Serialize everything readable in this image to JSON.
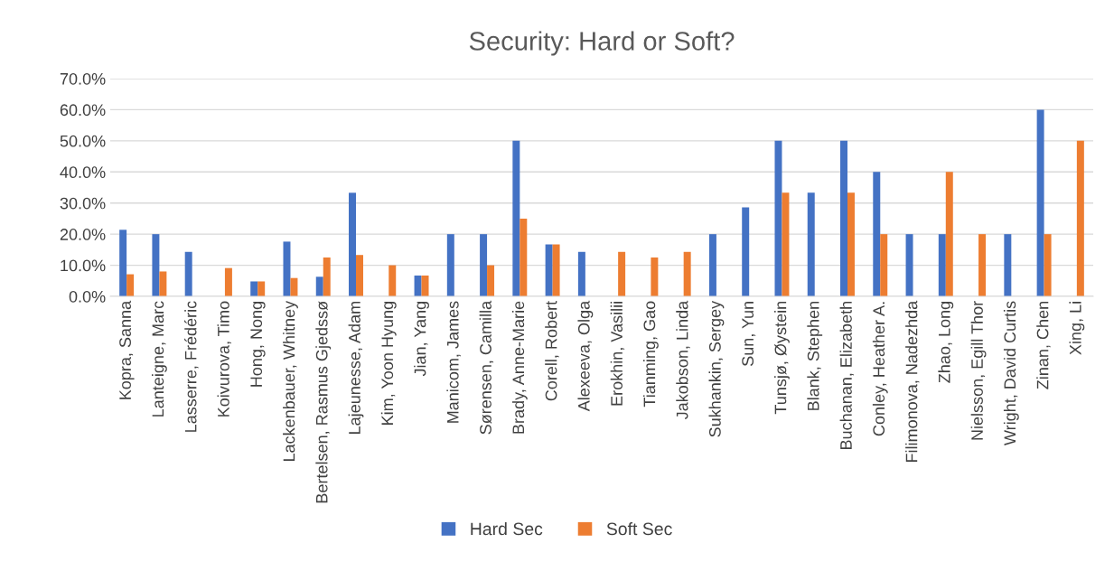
{
  "chart_data": {
    "type": "bar",
    "title": "Security: Hard or Soft?",
    "categories": [
      "Kopra, Sanna",
      "Lanteigne, Marc",
      "Lasserre, Frédéric",
      "Koivurova, Timo",
      "Hong, Nong",
      "Lackenbauer, Whitney",
      "Bertelsen, Rasmus Gjedssø",
      "Lajeunesse, Adam",
      "Kim, Yoon Hyung",
      "Jian, Yang",
      "Manicom, James",
      "Sørensen, Camilla",
      "Brady, Anne-Marie",
      "Corell, Robert",
      "Alexeeva, Olga",
      "Erokhin, Vasilii",
      "Tianming, Gao",
      "Jakobson, Linda",
      "Sukhankin, Sergey",
      "Sun, Yun",
      "Tunsjø, Øystein",
      "Blank, Stephen",
      "Buchanan, Elizabeth",
      "Conley, Heather A.",
      "Filimonova, Nadezhda",
      "Zhao, Long",
      "Nielsson, Egill Thor",
      "Wright, David Curtis",
      "Zinan, Chen",
      "Xing, Li"
    ],
    "series": [
      {
        "name": "Hard Sec",
        "color": "#4472c4",
        "values": [
          21.4,
          20,
          14.3,
          0,
          4.8,
          17.6,
          6.3,
          33.3,
          0,
          6.7,
          20,
          20,
          50,
          16.7,
          14.3,
          0,
          0,
          0,
          20,
          28.6,
          50,
          33.3,
          50,
          40,
          20,
          20,
          0,
          20,
          60,
          0
        ]
      },
      {
        "name": "Soft Sec",
        "color": "#ed7d31",
        "values": [
          7.1,
          8,
          0,
          9.1,
          4.8,
          5.9,
          12.5,
          13.3,
          10,
          6.7,
          0,
          10,
          25,
          16.7,
          0,
          14.3,
          12.5,
          14.3,
          0,
          0,
          33.3,
          0,
          33.3,
          20,
          0,
          40,
          20,
          0,
          20,
          50
        ]
      }
    ],
    "ylim": [
      0,
      70
    ],
    "yticks": [
      {
        "value": 0,
        "label": "0.0%"
      },
      {
        "value": 10,
        "label": "10.0%"
      },
      {
        "value": 20,
        "label": "20.0%"
      },
      {
        "value": 30,
        "label": "30.0%"
      },
      {
        "value": 40,
        "label": "40.0%"
      },
      {
        "value": 50,
        "label": "50.0%"
      },
      {
        "value": 60,
        "label": "60.0%"
      },
      {
        "value": 70,
        "label": "70.0%"
      }
    ],
    "grid": "y",
    "legend": "bottom"
  }
}
